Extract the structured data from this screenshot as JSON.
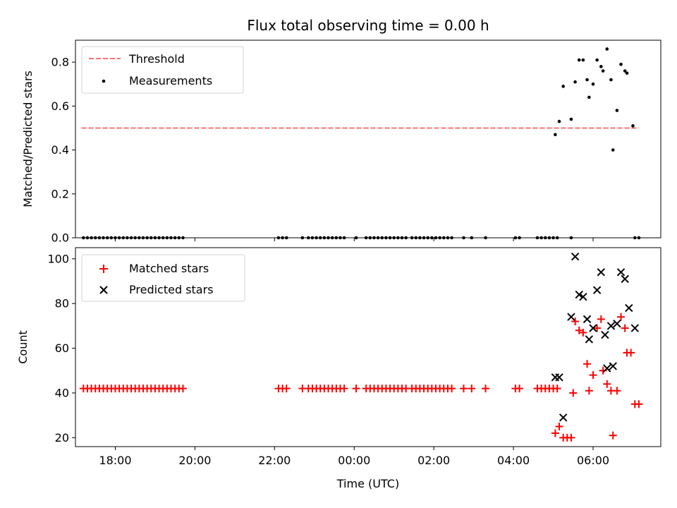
{
  "figure": {
    "title": "Flux total observing time = 0.00 h",
    "xlabel": "Time (UTC)"
  },
  "x_axis": {
    "min_hours": -7.0,
    "max_hours": 7.7,
    "tick_hours": [
      -6,
      -4,
      -2,
      0,
      2,
      4,
      6
    ],
    "tick_labels": [
      "18:00",
      "20:00",
      "22:00",
      "00:00",
      "02:00",
      "04:00",
      "06:00"
    ]
  },
  "chart_data": [
    {
      "type": "scatter",
      "ylabel": "Matched/Predicted stars",
      "ylim": [
        0,
        0.9
      ],
      "yticks": [
        0.0,
        0.2,
        0.4,
        0.6,
        0.8
      ],
      "ytick_labels": [
        "0.0",
        "0.2",
        "0.4",
        "0.6",
        "0.8"
      ],
      "legend": {
        "placement": "top-left",
        "entries": [
          "Threshold",
          "Measurements"
        ]
      },
      "threshold": {
        "name": "Threshold",
        "value": 0.5,
        "x_start_hours": -6.85,
        "x_end_hours": 7.15,
        "color": "#ff7070",
        "style": "dashed"
      },
      "measurements": {
        "name": "Measurements",
        "color": "#000000",
        "zero_x_hours": [
          -6.8,
          -6.7,
          -6.6,
          -6.5,
          -6.4,
          -6.3,
          -6.2,
          -6.1,
          -6.0,
          -5.9,
          -5.8,
          -5.7,
          -5.6,
          -5.5,
          -5.4,
          -5.3,
          -5.2,
          -5.1,
          -5.0,
          -4.9,
          -4.8,
          -4.7,
          -4.6,
          -4.5,
          -4.4,
          -4.3,
          -1.9,
          -1.8,
          -1.7,
          -1.3,
          -1.15,
          -1.05,
          -0.95,
          -0.85,
          -0.75,
          -0.65,
          -0.55,
          -0.45,
          -0.35,
          -0.25,
          0.05,
          0.3,
          0.4,
          0.5,
          0.6,
          0.7,
          0.8,
          0.9,
          1.0,
          1.1,
          1.2,
          1.3,
          1.45,
          1.55,
          1.65,
          1.75,
          1.85,
          1.95,
          2.05,
          2.15,
          2.25,
          2.35,
          2.45,
          2.75,
          2.95,
          3.3,
          4.05,
          4.15,
          4.6,
          4.7,
          4.8,
          4.9,
          5.0,
          5.1,
          5.45,
          7.05,
          7.15
        ],
        "x_hours": [
          5.05,
          5.15,
          5.25,
          5.45,
          5.55,
          5.65,
          5.75,
          5.85,
          5.9,
          6.0,
          6.1,
          6.2,
          6.25,
          6.35,
          6.45,
          6.5,
          6.6,
          6.7,
          6.8,
          6.85,
          7.0
        ],
        "y": [
          0.47,
          0.53,
          0.69,
          0.54,
          0.71,
          0.81,
          0.81,
          0.72,
          0.64,
          0.7,
          0.81,
          0.78,
          0.76,
          0.86,
          0.72,
          0.4,
          0.58,
          0.79,
          0.76,
          0.75,
          0.51
        ]
      }
    },
    {
      "type": "scatter",
      "ylabel": "Count",
      "ylim": [
        16,
        105
      ],
      "yticks": [
        20,
        40,
        60,
        80,
        100
      ],
      "ytick_labels": [
        "20",
        "40",
        "60",
        "80",
        "100"
      ],
      "legend": {
        "placement": "top-left",
        "entries": [
          "Matched stars",
          "Predicted stars"
        ]
      },
      "series": [
        {
          "name": "Matched stars",
          "marker": "+",
          "color": "#ff0000",
          "x_hours": [
            -6.8,
            -6.7,
            -6.6,
            -6.5,
            -6.4,
            -6.3,
            -6.2,
            -6.1,
            -6.0,
            -5.9,
            -5.8,
            -5.7,
            -5.6,
            -5.5,
            -5.4,
            -5.3,
            -5.2,
            -5.1,
            -5.0,
            -4.9,
            -4.8,
            -4.7,
            -4.6,
            -4.5,
            -4.4,
            -4.3,
            -1.9,
            -1.8,
            -1.7,
            -1.3,
            -1.15,
            -1.05,
            -0.95,
            -0.85,
            -0.75,
            -0.65,
            -0.55,
            -0.45,
            -0.35,
            -0.25,
            0.05,
            0.3,
            0.4,
            0.5,
            0.6,
            0.7,
            0.8,
            0.9,
            1.0,
            1.1,
            1.2,
            1.3,
            1.45,
            1.55,
            1.65,
            1.75,
            1.85,
            1.95,
            2.05,
            2.15,
            2.25,
            2.35,
            2.45,
            2.75,
            2.95,
            3.3,
            4.05,
            4.15,
            4.6,
            4.7,
            4.8,
            4.9,
            5.0,
            5.1,
            5.05,
            5.15,
            5.25,
            5.35,
            5.45,
            5.5,
            5.55,
            5.65,
            5.75,
            5.85,
            5.9,
            6.0,
            6.1,
            6.2,
            6.25,
            6.35,
            6.45,
            6.5,
            6.6,
            6.7,
            6.8,
            6.85,
            6.95,
            7.05,
            7.15
          ],
          "y": [
            42,
            42,
            42,
            42,
            42,
            42,
            42,
            42,
            42,
            42,
            42,
            42,
            42,
            42,
            42,
            42,
            42,
            42,
            42,
            42,
            42,
            42,
            42,
            42,
            42,
            42,
            42,
            42,
            42,
            42,
            42,
            42,
            42,
            42,
            42,
            42,
            42,
            42,
            42,
            42,
            42,
            42,
            42,
            42,
            42,
            42,
            42,
            42,
            42,
            42,
            42,
            42,
            42,
            42,
            42,
            42,
            42,
            42,
            42,
            42,
            42,
            42,
            42,
            42,
            42,
            42,
            42,
            42,
            42,
            42,
            42,
            42,
            42,
            42,
            22,
            25,
            20,
            20,
            20,
            40,
            72,
            68,
            67,
            53,
            41,
            48,
            69,
            73,
            50,
            44,
            41,
            21,
            41,
            74,
            69,
            58,
            58,
            35,
            35
          ]
        },
        {
          "name": "Predicted stars",
          "marker": "x",
          "color": "#000000",
          "x_hours": [
            5.05,
            5.15,
            5.25,
            5.45,
            5.55,
            5.65,
            5.75,
            5.85,
            5.9,
            6.0,
            6.1,
            6.2,
            6.3,
            6.35,
            6.45,
            6.5,
            6.6,
            6.7,
            6.8,
            6.9,
            7.05
          ],
          "y": [
            47,
            47,
            29,
            74,
            101,
            84,
            83,
            73,
            64,
            69,
            86,
            94,
            66,
            51,
            70,
            52,
            71,
            94,
            91,
            78,
            69
          ]
        }
      ]
    }
  ]
}
